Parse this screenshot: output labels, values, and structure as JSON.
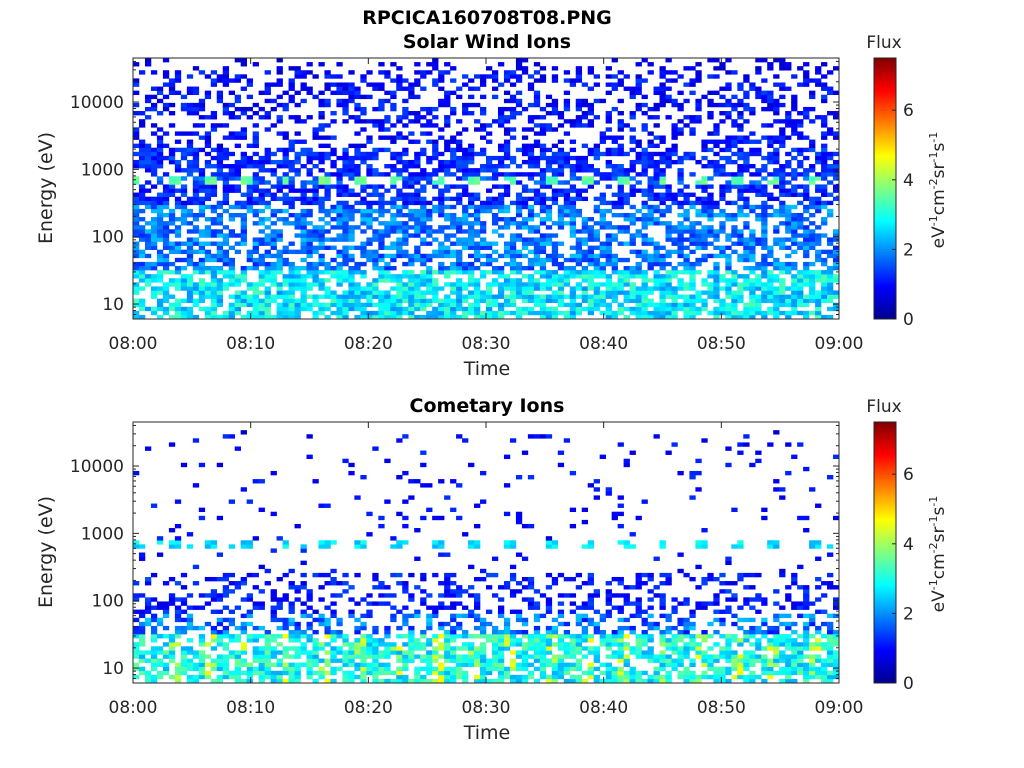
{
  "figure_title": "RPCICA160708T08.PNG",
  "chart_data": [
    {
      "type": "heatmap",
      "title": "Solar Wind Ions",
      "xlabel": "Time",
      "ylabel": "Energy (eV)",
      "x_ticks": [
        "08:00",
        "08:10",
        "08:20",
        "08:30",
        "08:40",
        "08:50",
        "09:00"
      ],
      "x_range": [
        "08:00",
        "09:00"
      ],
      "y_scale": "log",
      "y_ticks": [
        10,
        100,
        1000,
        10000
      ],
      "y_tick_labels": [
        "10",
        "100",
        "1000",
        "10000"
      ],
      "y_range": [
        6,
        45000
      ],
      "colorbar": {
        "title": "Flux",
        "label": "eV-1cm-2sr-1s-1",
        "ticks": [
          0,
          2,
          4,
          6
        ],
        "range": [
          0,
          7.5
        ],
        "colormap": "jet"
      },
      "features": [
        {
          "energy_band": "10-30 eV",
          "typical_flux": 2.5
        },
        {
          "energy_band": "650-750 eV",
          "typical_flux": 3.5,
          "periodic_minutes": 3.2
        },
        {
          "energy_band": "1000-30000 eV",
          "typical_flux": 1.0
        }
      ]
    },
    {
      "type": "heatmap",
      "title": "Cometary Ions",
      "xlabel": "Time",
      "ylabel": "Energy (eV)",
      "x_ticks": [
        "08:00",
        "08:10",
        "08:20",
        "08:30",
        "08:40",
        "08:50",
        "09:00"
      ],
      "x_range": [
        "08:00",
        "09:00"
      ],
      "y_scale": "log",
      "y_ticks": [
        10,
        100,
        1000,
        10000
      ],
      "y_tick_labels": [
        "10",
        "100",
        "1000",
        "10000"
      ],
      "y_range": [
        6,
        45000
      ],
      "colorbar": {
        "title": "Flux",
        "label": "eV-1cm-2sr-1s-1",
        "ticks": [
          0,
          2,
          4,
          6
        ],
        "range": [
          0,
          7.5
        ],
        "colormap": "jet"
      },
      "features": [
        {
          "energy_band": "6-30 eV",
          "typical_flux": 3.5,
          "max_flux": 5.0
        },
        {
          "energy_band": "650-750 eV",
          "typical_flux": 2.5,
          "periodic_minutes": 3.2
        },
        {
          "energy_band": "60-200 eV",
          "typical_flux": 1.0
        }
      ]
    }
  ]
}
